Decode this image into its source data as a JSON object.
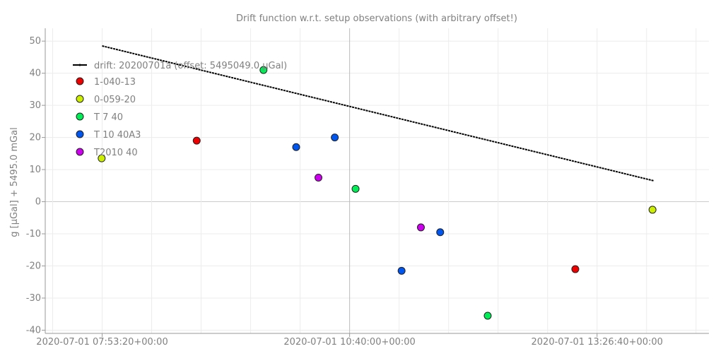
{
  "chart_data": {
    "type": "scatter",
    "title": "Drift function w.r.t. setup observations (with arbitrary offset!)",
    "xlabel": "",
    "ylabel": "g [µGal] + 5495.0 mGal",
    "xlim": [
      "2020-07-01T07:15:00",
      "2020-07-01T14:42:00"
    ],
    "ylim": [
      -41,
      54
    ],
    "y_ticks": [
      50,
      40,
      30,
      20,
      10,
      0,
      -10,
      -20,
      -30,
      -40
    ],
    "x_ticks": [
      {
        "value": "2020-07-01T07:53:20",
        "label": "2020-07-01 07:53:20+00:00"
      },
      {
        "value": "2020-07-01T10:40:00",
        "label": "2020-07-01 10:40:00+00:00"
      },
      {
        "value": "2020-07-01T13:26:40",
        "label": "2020-07-01 13:26:40+00:00"
      }
    ],
    "grid": true,
    "legend_position": "top-left",
    "drift": {
      "name": "drift: 20200701a (offset: 5495049.0 µGal)",
      "color": "#000000",
      "x": [
        "2020-07-01T07:53:20",
        "2020-07-01T14:05:00"
      ],
      "y": [
        48.5,
        6.5
      ]
    },
    "series": [
      {
        "name": "1-040-13",
        "color": "#ee0000",
        "x": [
          "2020-07-01T08:57:00",
          "2020-07-01T13:12:00"
        ],
        "y": [
          19,
          -21
        ]
      },
      {
        "name": "0-059-20",
        "color": "#ccee00",
        "x": [
          "2020-07-01T07:53:00",
          "2020-07-01T14:04:00"
        ],
        "y": [
          13.5,
          -2.5
        ]
      },
      {
        "name": "T 7 40",
        "color": "#00ee55",
        "x": [
          "2020-07-01T09:42:00",
          "2020-07-01T10:44:00",
          "2020-07-01T12:13:00"
        ],
        "y": [
          41,
          4,
          -35.5
        ]
      },
      {
        "name": "T 10 40A3",
        "color": "#0055ee",
        "x": [
          "2020-07-01T10:04:00",
          "2020-07-01T10:30:00",
          "2020-07-01T11:15:00",
          "2020-07-01T11:41:00"
        ],
        "y": [
          17,
          20,
          -21.5,
          -9.5
        ]
      },
      {
        "name": "T2010 40",
        "color": "#cc00ee",
        "x": [
          "2020-07-01T10:19:00",
          "2020-07-01T11:28:00"
        ],
        "y": [
          7.5,
          -8
        ]
      }
    ]
  }
}
